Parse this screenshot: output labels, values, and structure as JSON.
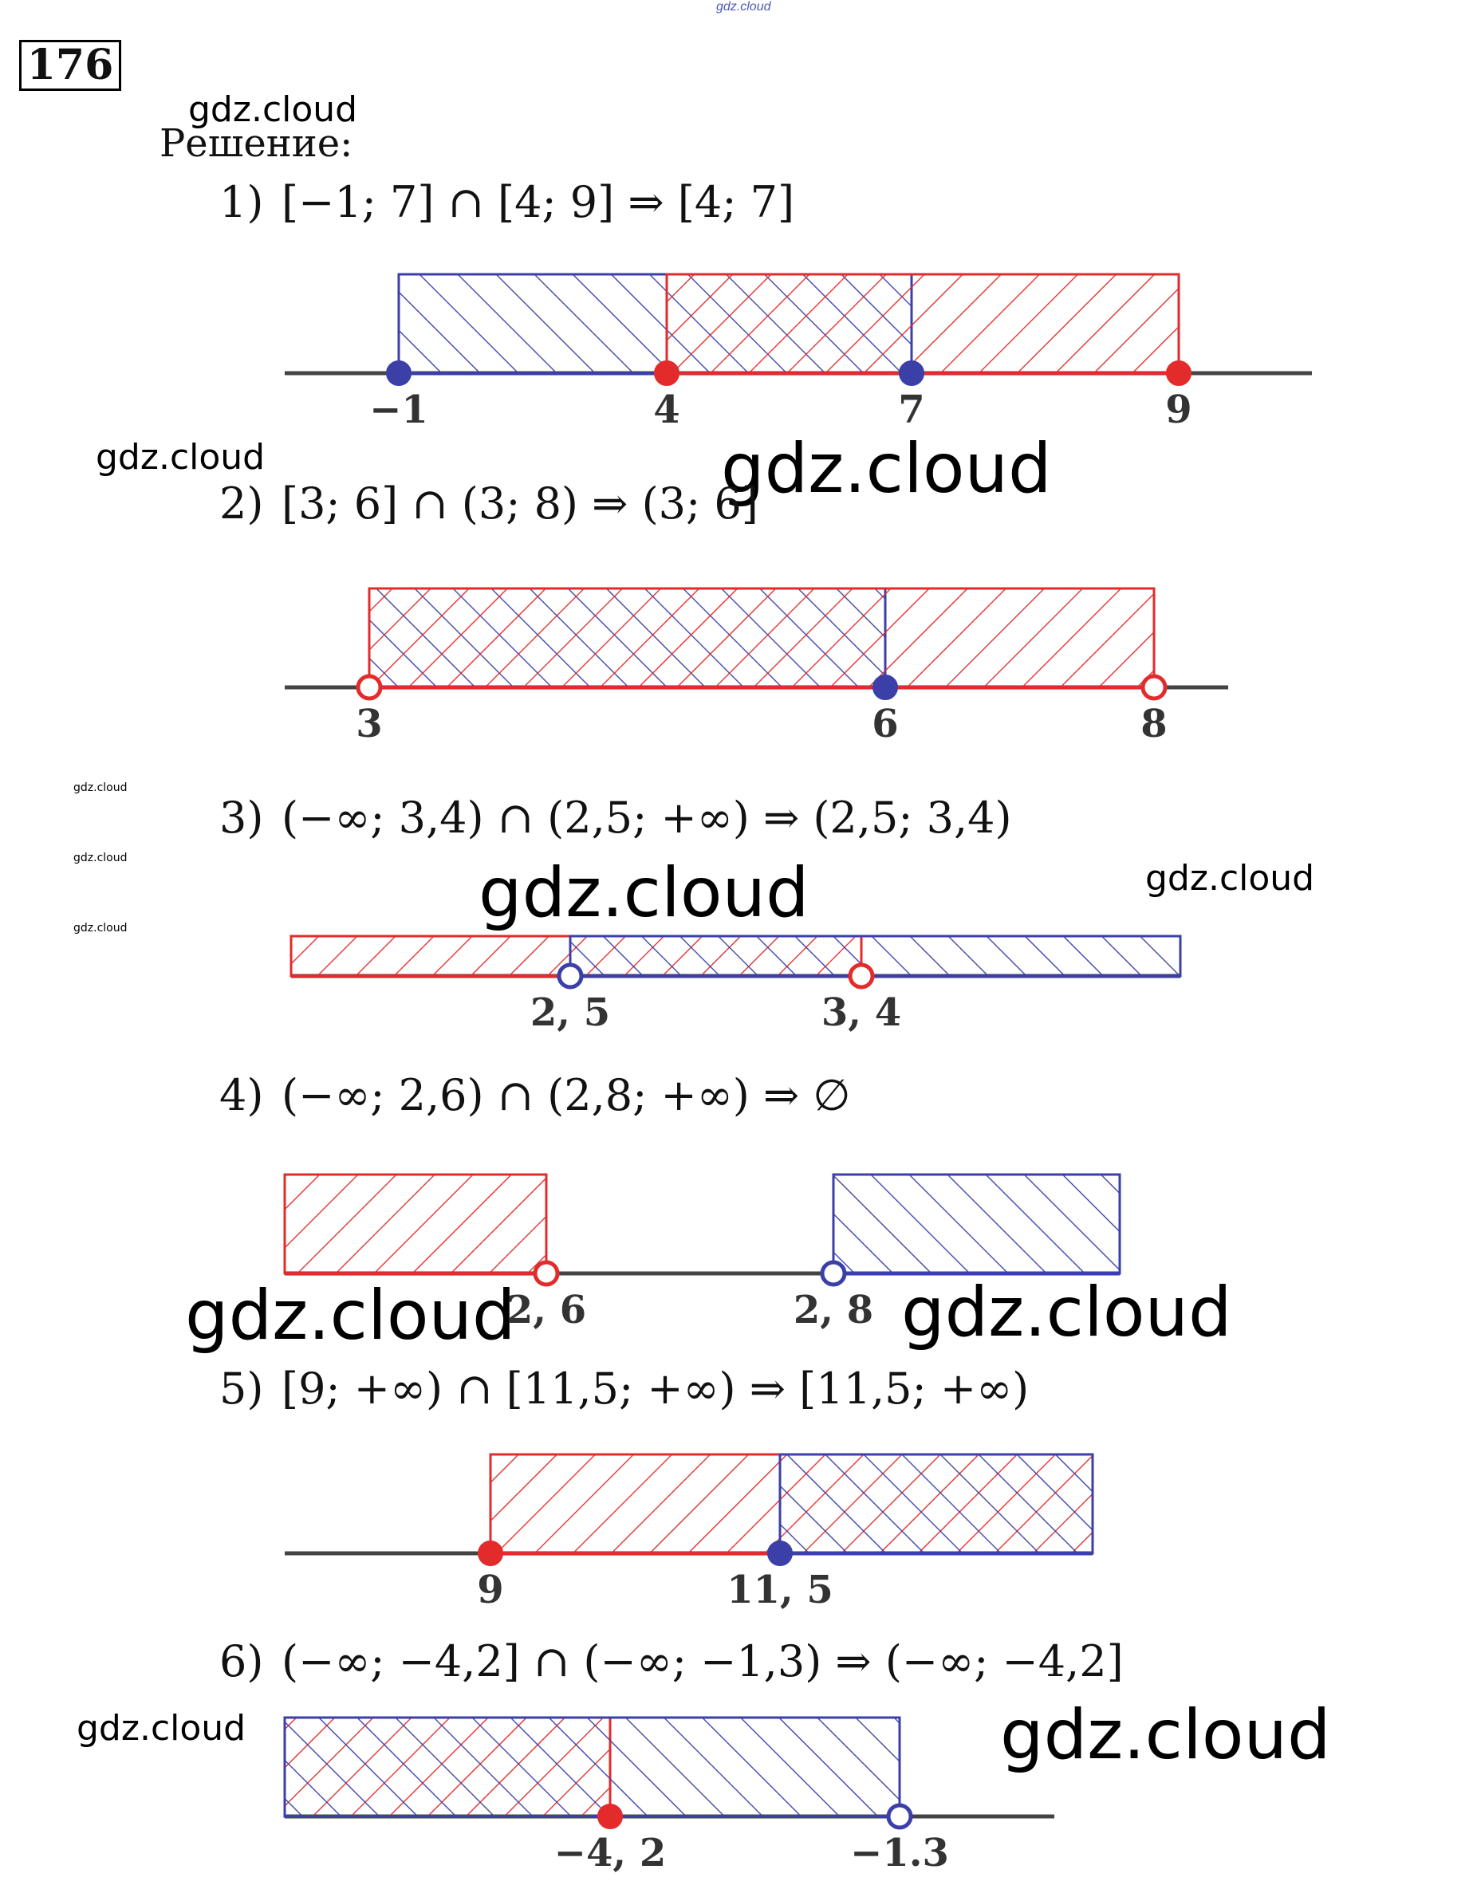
{
  "header": {
    "site_mark": "gdz.cloud",
    "task_number": "176",
    "solution_label": "Решение:"
  },
  "watermarks": {
    "text": "gdz.cloud"
  },
  "colors": {
    "blue": "#3b3fa8",
    "red": "#e32b2b",
    "axis": "#444444"
  },
  "items": [
    {
      "num": "1)",
      "expression": "[−1; 7] ∩ [4; 9] ⇒ [4; 7]",
      "intervals": [
        {
          "color": "blue",
          "from": -1,
          "to": 7,
          "from_closed": true,
          "to_closed": true
        },
        {
          "color": "red",
          "from": 4,
          "to": 9,
          "from_closed": true,
          "to_closed": true
        }
      ],
      "ticks": [
        {
          "value": -1,
          "label": "−1"
        },
        {
          "value": 4,
          "label": "4"
        },
        {
          "value": 7,
          "label": "7"
        },
        {
          "value": 9,
          "label": "9"
        }
      ]
    },
    {
      "num": "2)",
      "expression": "[3; 6] ∩ (3; 8) ⇒ (3; 6]",
      "intervals": [
        {
          "color": "blue",
          "from": 3,
          "to": 6,
          "from_closed": true,
          "to_closed": true
        },
        {
          "color": "red",
          "from": 3,
          "to": 8,
          "from_closed": false,
          "to_closed": false
        }
      ],
      "ticks": [
        {
          "value": 3,
          "label": "3"
        },
        {
          "value": 6,
          "label": "6"
        },
        {
          "value": 8,
          "label": "8"
        }
      ]
    },
    {
      "num": "3)",
      "expression": "(−∞; 3,4) ∩ (2,5; +∞) ⇒ (2,5; 3,4)",
      "intervals": [
        {
          "color": "red",
          "from": "-inf",
          "to": 3.4,
          "to_closed": false
        },
        {
          "color": "blue",
          "from": 2.5,
          "to": "+inf",
          "from_closed": false
        }
      ],
      "ticks": [
        {
          "value": 2.5,
          "label": "2, 5"
        },
        {
          "value": 3.4,
          "label": "3, 4"
        }
      ]
    },
    {
      "num": "4)",
      "expression": "(−∞; 2,6) ∩ (2,8; +∞) ⇒ ∅",
      "intervals": [
        {
          "color": "red",
          "from": "-inf",
          "to": 2.6,
          "to_closed": false
        },
        {
          "color": "blue",
          "from": 2.8,
          "to": "+inf",
          "from_closed": false
        }
      ],
      "ticks": [
        {
          "value": 2.6,
          "label": "2, 6"
        },
        {
          "value": 2.8,
          "label": "2, 8"
        }
      ]
    },
    {
      "num": "5)",
      "expression": "[9; +∞) ∩ [11,5; +∞) ⇒ [11,5; +∞)",
      "intervals": [
        {
          "color": "red",
          "from": 9,
          "to": "+inf",
          "from_closed": true
        },
        {
          "color": "blue",
          "from": 11.5,
          "to": "+inf",
          "from_closed": true
        }
      ],
      "ticks": [
        {
          "value": 9,
          "label": "9"
        },
        {
          "value": 11.5,
          "label": "11, 5"
        }
      ]
    },
    {
      "num": "6)",
      "expression": "(−∞; −4,2] ∩ (−∞; −1,3) ⇒ (−∞; −4,2]",
      "intervals": [
        {
          "color": "red",
          "from": "-inf",
          "to": -4.2,
          "to_closed": true
        },
        {
          "color": "blue",
          "from": "-inf",
          "to": -1.3,
          "to_closed": false
        }
      ],
      "ticks": [
        {
          "value": -4.2,
          "label": "−4, 2"
        },
        {
          "value": -1.3,
          "label": "−1.3"
        }
      ]
    }
  ]
}
